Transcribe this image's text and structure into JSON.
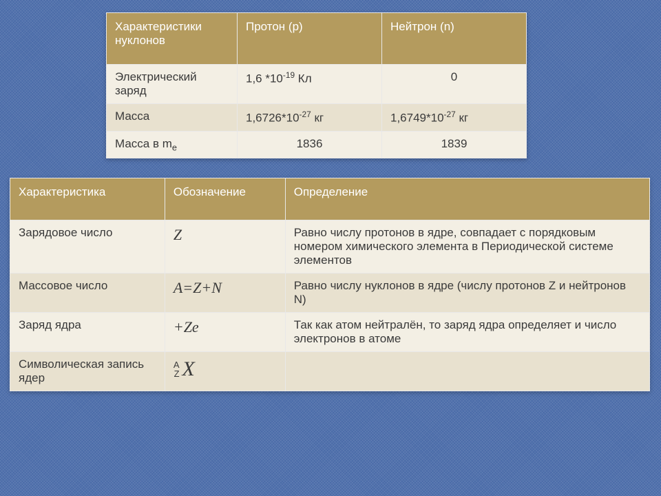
{
  "table1": {
    "header_bg": "#b49b5e",
    "row_light_bg": "#f3efe4",
    "row_dark_bg": "#e8e1cf",
    "columns": [
      "Характеристики нуклонов",
      "Протон (p)",
      "Нейтрон (n)"
    ],
    "rows": [
      {
        "label": "Электрический заряд",
        "proton_html": "1,6 *10<sup>-19</sup> Кл",
        "neutron": "0",
        "neutron_align": "center"
      },
      {
        "label": "Масса",
        "proton_html": "1,6726*10<sup>-27</sup> кг",
        "neutron_html": "1,6749*10<sup>-27</sup> кг"
      },
      {
        "label_html": "Масса в m<sub>e</sub>",
        "proton": "1836",
        "proton_align": "center",
        "neutron": "1839",
        "neutron_align": "center"
      }
    ]
  },
  "table2": {
    "columns": [
      "Характеристика",
      "Обозначение",
      "Определение"
    ],
    "rows": [
      {
        "label": "Зарядовое число",
        "symbol": "Z",
        "definition": "Равно числу протонов в ядре, совпадает с порядковым номером химического элемента в Периодической системе элементов"
      },
      {
        "label": "Массовое число",
        "symbol": "A=Z+N",
        "definition": "Равно числу нуклонов в ядре (числу протонов Z и нейтронов N)"
      },
      {
        "label": "Заряд ядра",
        "symbol": "+Ze",
        "definition": "Так как атом нейтралён, то заряд ядра определяет и число электронов в атоме"
      },
      {
        "label": "Символическая запись ядер",
        "symbol_special": {
          "top": "A",
          "bottom": "Z",
          "main": "X"
        },
        "definition": ""
      }
    ]
  }
}
